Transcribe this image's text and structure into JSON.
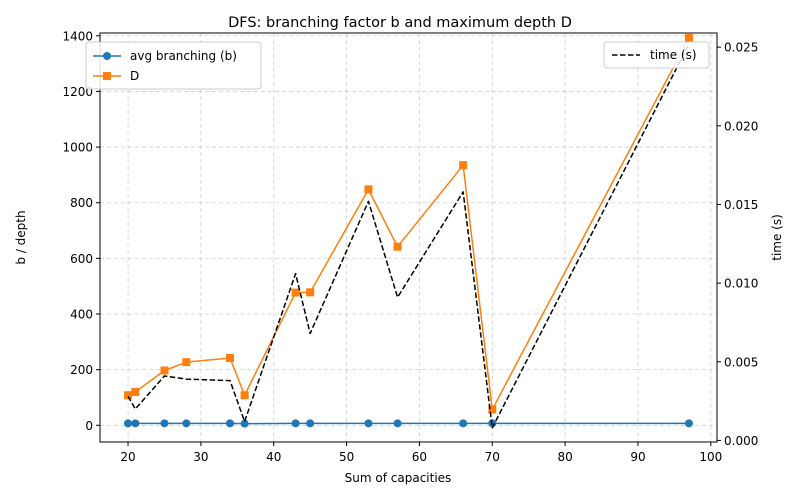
{
  "chart_data": {
    "type": "line",
    "title": "DFS: branching factor b and maximum depth D",
    "xlabel": "Sum of capacities",
    "ylabel": "b / depth",
    "y2label": "time (s)",
    "xlim": [
      16.15,
      100.85
    ],
    "ylim": [
      -60,
      1410
    ],
    "y2lim": [
      -0.0001,
      0.0259
    ],
    "x_ticks": [
      20,
      30,
      40,
      50,
      60,
      70,
      80,
      90,
      100
    ],
    "y_ticks": [
      0,
      200,
      400,
      600,
      800,
      1000,
      1200,
      1400
    ],
    "y2_ticks": [
      "0.000",
      "0.005",
      "0.010",
      "0.015",
      "0.020",
      "0.025"
    ],
    "grid": true,
    "x": [
      20,
      21,
      25,
      28,
      34,
      36,
      43,
      45,
      53,
      57,
      66,
      70,
      97
    ],
    "series": [
      {
        "name": "avg branching (b)",
        "axis": "left",
        "color": "#1f77b4",
        "marker": "circle",
        "line": "solid",
        "values": [
          7,
          7,
          7,
          7,
          7,
          6,
          7,
          7,
          7,
          7,
          7,
          7,
          7
        ]
      },
      {
        "name": "D",
        "axis": "left",
        "color": "#ff7f0e",
        "marker": "square",
        "line": "solid",
        "values": [
          108,
          120,
          197,
          227,
          242,
          108,
          477,
          478,
          848,
          642,
          935,
          57,
          1392
        ]
      },
      {
        "name": "time (s)",
        "axis": "right",
        "color": "#000000",
        "marker": "none",
        "line": "dashed",
        "values": [
          0.0028,
          0.002,
          0.0041,
          0.0039,
          0.0038,
          0.0012,
          0.0106,
          0.0068,
          0.0152,
          0.0091,
          0.0158,
          0.0008,
          0.0252
        ]
      }
    ],
    "legend_left": {
      "placement": "top-left",
      "entries": [
        "avg branching (b)",
        "D"
      ]
    },
    "legend_right": {
      "placement": "top-right",
      "entries": [
        "time (s)"
      ]
    }
  }
}
